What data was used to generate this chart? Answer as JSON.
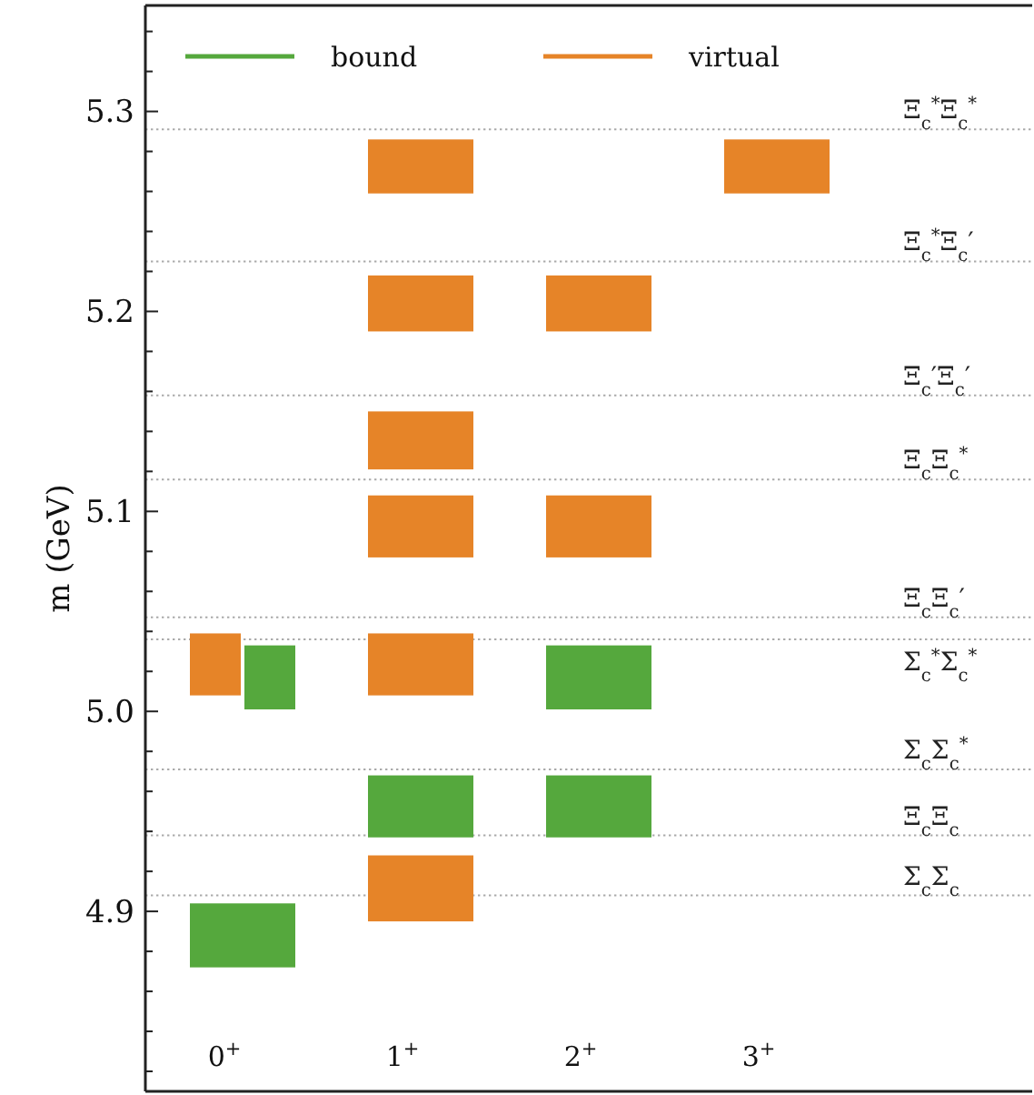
{
  "chart_data": {
    "type": "bar",
    "ylabel": "m (GeV)",
    "categories": [
      "0$^{+}$",
      "1$^{+}$",
      "2$^{+}$",
      "3$^{+}$"
    ],
    "ylim": [
      4.81,
      5.353
    ],
    "yticks": [
      {
        "value": 4.82,
        "label": null
      },
      {
        "value": 4.84,
        "label": null
      },
      {
        "value": 4.86,
        "label": null
      },
      {
        "value": 4.88,
        "label": null
      },
      {
        "value": 4.9,
        "label": "4.9"
      },
      {
        "value": 4.92,
        "label": null
      },
      {
        "value": 4.94,
        "label": null
      },
      {
        "value": 4.96,
        "label": null
      },
      {
        "value": 4.98,
        "label": null
      },
      {
        "value": 5.0,
        "label": "5.0"
      },
      {
        "value": 5.02,
        "label": null
      },
      {
        "value": 5.04,
        "label": null
      },
      {
        "value": 5.06,
        "label": null
      },
      {
        "value": 5.08,
        "label": null
      },
      {
        "value": 5.1,
        "label": "5.1"
      },
      {
        "value": 5.12,
        "label": null
      },
      {
        "value": 5.14,
        "label": null
      },
      {
        "value": 5.16,
        "label": null
      },
      {
        "value": 5.18,
        "label": null
      },
      {
        "value": 5.2,
        "label": "5.2"
      },
      {
        "value": 5.22,
        "label": null
      },
      {
        "value": 5.24,
        "label": null
      },
      {
        "value": 5.26,
        "label": null
      },
      {
        "value": 5.28,
        "label": null
      },
      {
        "value": 5.3,
        "label": "5.3"
      },
      {
        "value": 5.32,
        "label": null
      },
      {
        "value": 5.34,
        "label": null
      }
    ],
    "legend": "top left",
    "grid": false,
    "series": [
      {
        "name": "bound",
        "color": "#55a83d",
        "base": [
          5.001,
          null,
          5.001,
          null
        ],
        "values": [
          0.032,
          null,
          0.032,
          null
        ]
      },
      {
        "color": "#55a83d",
        "base": [
          null,
          4.937,
          4.937,
          null
        ],
        "values": [
          null,
          0.031,
          0.031,
          null
        ]
      },
      {
        "color": "#55a83d",
        "base": [
          4.872,
          null,
          null,
          null
        ],
        "values": [
          0.032,
          null,
          null,
          null
        ]
      },
      {
        "name": "virtual",
        "color": "#e68428",
        "base": [
          null,
          5.259,
          null,
          5.259
        ],
        "values": [
          null,
          0.027,
          null,
          0.027
        ]
      },
      {
        "color": "#e68428",
        "base": [
          null,
          5.19,
          5.19,
          null
        ],
        "values": [
          null,
          0.028,
          0.028,
          null
        ]
      },
      {
        "color": "#e68428",
        "base": [
          null,
          5.121,
          null,
          null
        ],
        "values": [
          null,
          0.029,
          null,
          null
        ]
      },
      {
        "color": "#e68428",
        "base": [
          null,
          5.077,
          5.077,
          null
        ],
        "values": [
          null,
          0.031,
          0.031,
          null
        ]
      },
      {
        "color": "#e68428",
        "base": [
          5.008,
          5.008,
          null,
          null
        ],
        "values": [
          0.031,
          0.031,
          null,
          null
        ]
      },
      {
        "color": "#e68428",
        "base": [
          null,
          4.895,
          null,
          null
        ],
        "values": [
          null,
          0.033,
          null,
          null
        ]
      }
    ],
    "ref_lines": [
      {
        "axis": "y",
        "value": 5.291,
        "label": "Ξ$_{c}$$^{*}$Ξ$_{c}$$^{*}$",
        "color": "#aaaaaa",
        "line_style": "dotted"
      },
      {
        "axis": "y",
        "value": 5.225,
        "label": "Ξ$_{c}$$^{*}$Ξ$_{c}$′",
        "color": "#aaaaaa",
        "line_style": "dotted"
      },
      {
        "axis": "y",
        "value": 5.158,
        "label": "Ξ$_{c}$′Ξ$_{c}$′",
        "color": "#aaaaaa",
        "line_style": "dotted"
      },
      {
        "axis": "y",
        "value": 5.116,
        "label": "Ξ$_{c}$Ξ$_{c}$$^{*}$",
        "color": "#aaaaaa",
        "line_style": "dotted"
      },
      {
        "axis": "y",
        "value": 5.047,
        "label": "Ξ$_{c}$Ξ$_{c}$′",
        "color": "#aaaaaa",
        "line_style": "dotted"
      },
      {
        "axis": "y",
        "value": 5.036,
        "label": "Σ$_{c}$$^{*}$Σ$_{c}$$^{*}$",
        "color": "#aaaaaa",
        "line_style": "dotted"
      },
      {
        "axis": "y",
        "value": 4.971,
        "label": "Σ$_{c}$Σ$_{c}$$^{*}$",
        "color": "#aaaaaa",
        "line_style": "dotted"
      },
      {
        "axis": "y",
        "value": 4.938,
        "label": "Ξ$_{c}$Ξ$_{c}$",
        "color": "#aaaaaa",
        "line_style": "dotted"
      },
      {
        "axis": "y",
        "value": 4.908,
        "label": "Σ$_{c}$Σ$_{c}$",
        "color": "#aaaaaa",
        "line_style": "dotted"
      }
    ]
  }
}
